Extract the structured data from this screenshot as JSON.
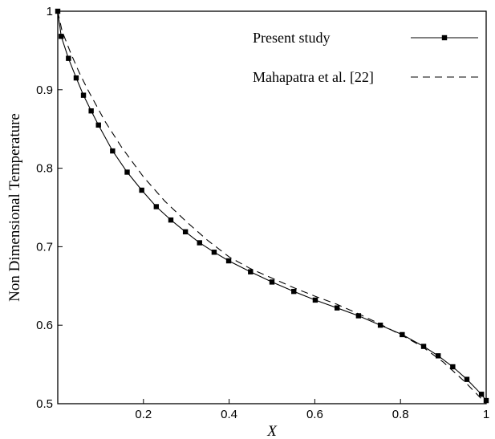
{
  "chart_data": {
    "type": "line",
    "xlabel": "X",
    "ylabel": "Non Dimensional Temperature",
    "xlim": [
      0,
      1
    ],
    "ylim": [
      0.5,
      1
    ],
    "x_ticks": [
      {
        "value": 0.2,
        "label": "0.2"
      },
      {
        "value": 0.4,
        "label": "0.4"
      },
      {
        "value": 0.6,
        "label": "0.6"
      },
      {
        "value": 0.8,
        "label": "0.8"
      },
      {
        "value": 1,
        "label": "1"
      }
    ],
    "y_ticks": [
      {
        "value": 0.5,
        "label": "0.5"
      },
      {
        "value": 0.6,
        "label": "0.6"
      },
      {
        "value": 0.7,
        "label": "0.7"
      },
      {
        "value": 0.8,
        "label": "0.8"
      },
      {
        "value": 0.9,
        "label": "0.9"
      },
      {
        "value": 1,
        "label": "1"
      }
    ],
    "grid": false,
    "legend_position": "top-right",
    "series": [
      {
        "name": "Present study",
        "style": "solid-square-markers",
        "color": "#000000",
        "points": [
          [
            0.0,
            1.0
          ],
          [
            0.008,
            0.968
          ],
          [
            0.025,
            0.94
          ],
          [
            0.043,
            0.915
          ],
          [
            0.06,
            0.893
          ],
          [
            0.078,
            0.873
          ],
          [
            0.095,
            0.855
          ],
          [
            0.128,
            0.822
          ],
          [
            0.162,
            0.795
          ],
          [
            0.196,
            0.772
          ],
          [
            0.23,
            0.751
          ],
          [
            0.264,
            0.734
          ],
          [
            0.298,
            0.719
          ],
          [
            0.331,
            0.705
          ],
          [
            0.365,
            0.693
          ],
          [
            0.399,
            0.682
          ],
          [
            0.45,
            0.668
          ],
          [
            0.5,
            0.655
          ],
          [
            0.551,
            0.643
          ],
          [
            0.601,
            0.632
          ],
          [
            0.652,
            0.622
          ],
          [
            0.702,
            0.612
          ],
          [
            0.753,
            0.6
          ],
          [
            0.804,
            0.588
          ],
          [
            0.854,
            0.573
          ],
          [
            0.888,
            0.561
          ],
          [
            0.922,
            0.547
          ],
          [
            0.955,
            0.531
          ],
          [
            0.989,
            0.512
          ],
          [
            1.0,
            0.504
          ]
        ]
      },
      {
        "name": "Mahapatra et al. [22]",
        "style": "dashed",
        "color": "#000000",
        "points": [
          [
            0.0,
            1.0
          ],
          [
            0.01,
            0.975
          ],
          [
            0.03,
            0.947
          ],
          [
            0.05,
            0.922
          ],
          [
            0.07,
            0.9
          ],
          [
            0.09,
            0.88
          ],
          [
            0.11,
            0.86
          ],
          [
            0.15,
            0.826
          ],
          [
            0.2,
            0.789
          ],
          [
            0.25,
            0.758
          ],
          [
            0.3,
            0.732
          ],
          [
            0.35,
            0.708
          ],
          [
            0.4,
            0.687
          ],
          [
            0.45,
            0.672
          ],
          [
            0.5,
            0.66
          ],
          [
            0.55,
            0.648
          ],
          [
            0.6,
            0.637
          ],
          [
            0.65,
            0.627
          ],
          [
            0.7,
            0.615
          ],
          [
            0.75,
            0.602
          ],
          [
            0.8,
            0.588
          ],
          [
            0.85,
            0.573
          ],
          [
            0.9,
            0.553
          ],
          [
            0.95,
            0.528
          ],
          [
            1.0,
            0.5
          ]
        ]
      }
    ]
  }
}
